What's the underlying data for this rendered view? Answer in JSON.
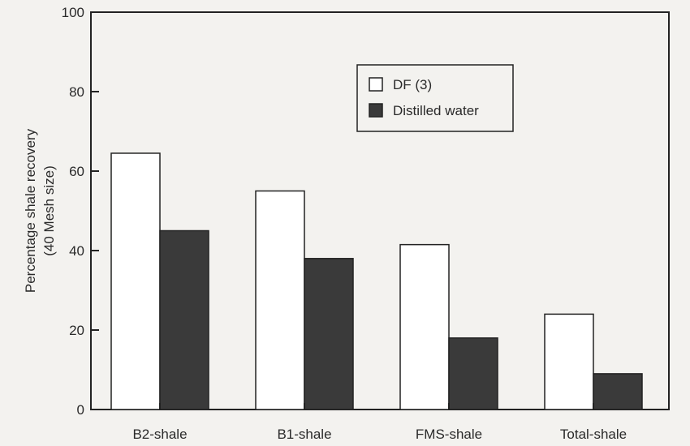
{
  "chart_data": {
    "type": "bar",
    "categories": [
      "B2-shale",
      "B1-shale",
      "FMS-shale",
      "Total-shale"
    ],
    "series": [
      {
        "name": "DF (3)",
        "values": [
          64.5,
          55,
          41.5,
          24
        ],
        "color": "#ffffff"
      },
      {
        "name": "Distilled water",
        "values": [
          45,
          38,
          18,
          9
        ],
        "color": "#3a3a3a"
      }
    ],
    "ylabel_line1": "Percentage shale recovery",
    "ylabel_line2": "(40 Mesh size)",
    "xlabel": "",
    "ylim": [
      0,
      100
    ],
    "yticks": [
      "0",
      "20",
      "40",
      "60",
      "80",
      "100"
    ],
    "grid": false,
    "legend_position": "top-right"
  }
}
